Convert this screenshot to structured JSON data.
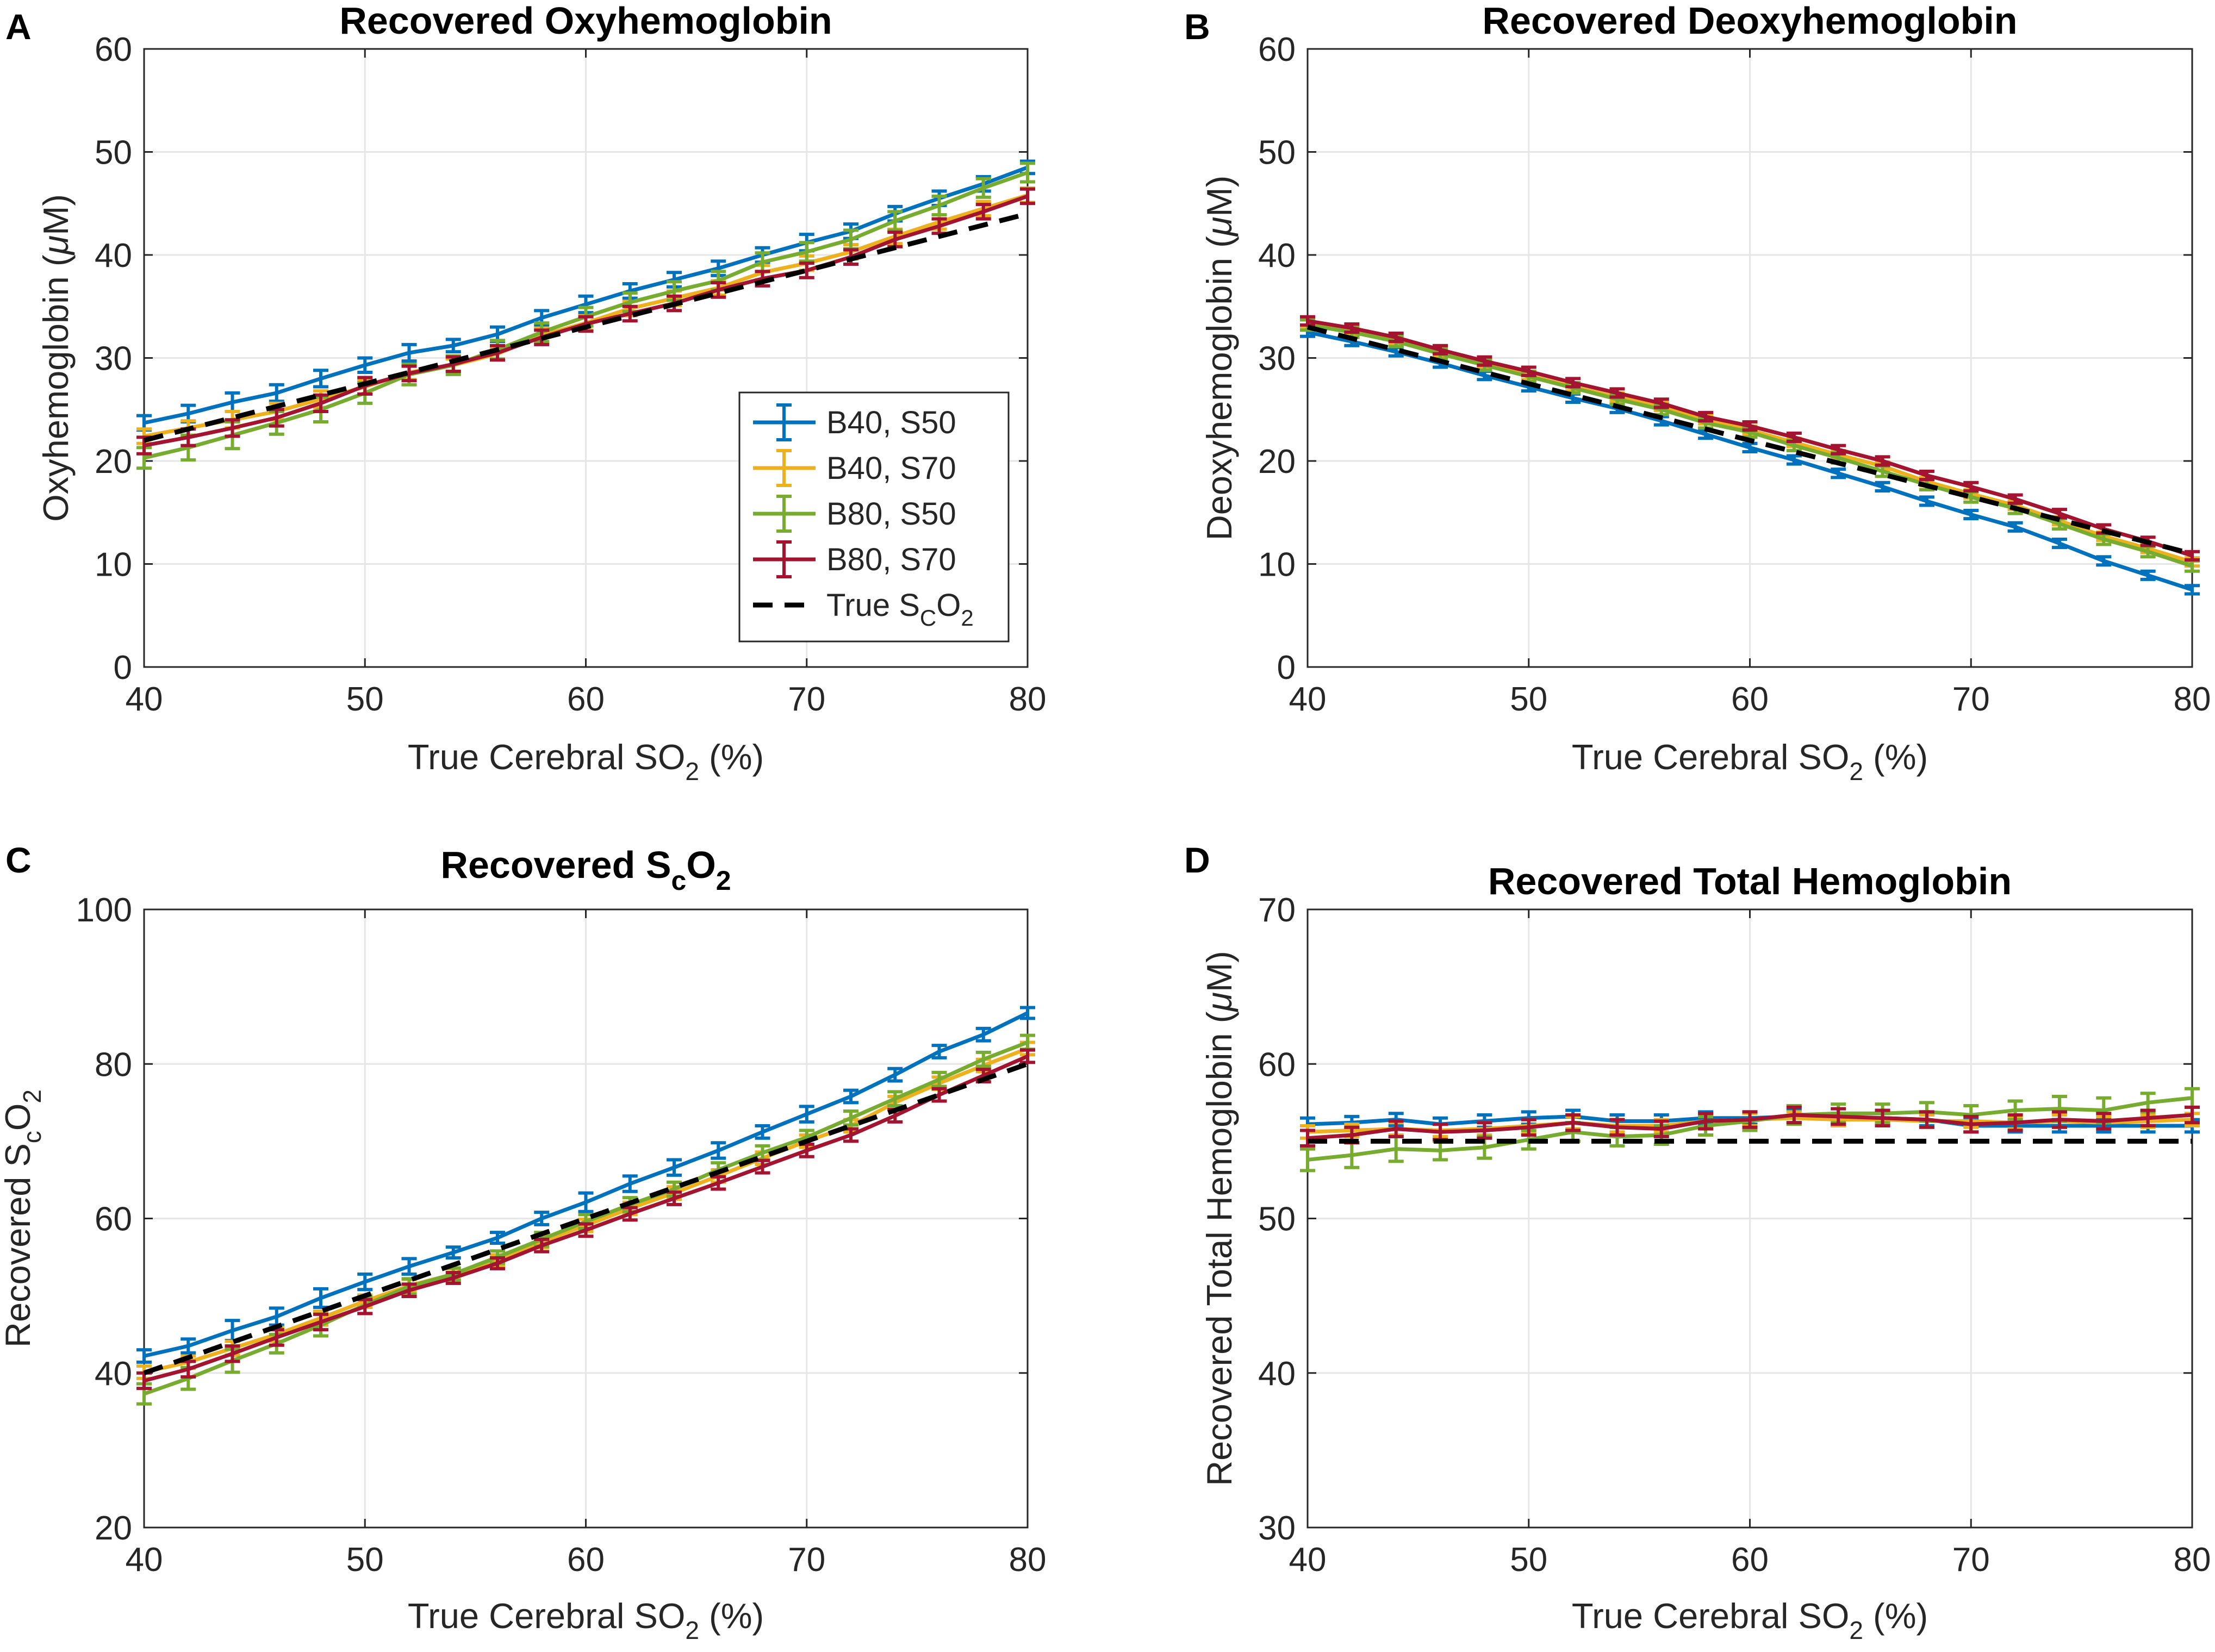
{
  "figure": {
    "colors": {
      "B40_S50": "#0072BD",
      "B40_S70": "#EDB120",
      "B80_S50": "#77AC30",
      "B80_S70": "#A2142F",
      "true": "#000000",
      "grid": "#e6e6e6",
      "axis": "#262626"
    },
    "legend": {
      "entries": [
        {
          "key": "B40_S50",
          "label": "B40, S50",
          "style": "errorbar"
        },
        {
          "key": "B40_S70",
          "label": "B40, S70",
          "style": "errorbar"
        },
        {
          "key": "B80_S50",
          "label": "B80, S50",
          "style": "errorbar"
        },
        {
          "key": "B80_S70",
          "label": "B80, S70",
          "style": "errorbar"
        },
        {
          "key": "true",
          "label": "True S",
          "sub1": "C",
          "mid": "O",
          "sub2": "2",
          "style": "dashed"
        }
      ]
    }
  },
  "chart_data": [
    {
      "panel": "A",
      "type": "line",
      "title": "Recovered Oxyhemoglobin",
      "xlabel": {
        "pre": "True Cerebral SO",
        "sub": "2",
        "post": " (%)"
      },
      "ylabel": {
        "pre": "Oxyhemoglobin (",
        "greek": "μ",
        "post": "M)"
      },
      "xlim": [
        40,
        80
      ],
      "ylim": [
        0,
        60
      ],
      "xticks": [
        40,
        50,
        60,
        70,
        80
      ],
      "yticks": [
        0,
        10,
        20,
        30,
        40,
        50,
        60
      ],
      "grid": true,
      "legend_location": "lower-right",
      "x": [
        40,
        42,
        44,
        46,
        48,
        50,
        52,
        54,
        56,
        58,
        60,
        62,
        64,
        66,
        68,
        70,
        72,
        74,
        76,
        78,
        80
      ],
      "series": [
        {
          "key": "B40_S50",
          "values": [
            23.7,
            24.6,
            25.7,
            26.6,
            28.0,
            29.3,
            30.5,
            31.2,
            32.3,
            33.9,
            35.2,
            36.5,
            37.6,
            38.7,
            40.0,
            41.2,
            42.3,
            44.0,
            45.5,
            46.9,
            48.5
          ],
          "err": [
            0.7,
            0.8,
            0.9,
            0.8,
            0.8,
            0.7,
            0.8,
            0.6,
            0.7,
            0.7,
            0.8,
            0.7,
            0.7,
            0.7,
            0.7,
            0.8,
            0.7,
            0.7,
            0.7,
            0.7,
            0.6
          ]
        },
        {
          "key": "B40_S70",
          "values": [
            22.4,
            23.2,
            24.0,
            24.8,
            26.0,
            27.2,
            28.6,
            29.3,
            30.4,
            32.2,
            33.4,
            34.8,
            35.8,
            36.8,
            38.3,
            39.2,
            40.3,
            41.8,
            43.2,
            44.5,
            45.8
          ],
          "err": [
            0.7,
            0.7,
            0.8,
            0.8,
            0.8,
            0.7,
            0.7,
            0.6,
            0.6,
            0.7,
            0.7,
            0.7,
            0.7,
            0.7,
            0.7,
            0.7,
            0.7,
            0.7,
            0.7,
            0.7,
            0.7
          ]
        },
        {
          "key": "B80_S50",
          "values": [
            20.3,
            21.3,
            22.5,
            23.7,
            25.0,
            26.6,
            28.4,
            29.3,
            30.8,
            32.5,
            34.0,
            35.4,
            36.5,
            37.5,
            39.3,
            40.3,
            41.5,
            43.3,
            44.8,
            46.5,
            48.0
          ],
          "err": [
            1.0,
            1.2,
            1.3,
            1.1,
            1.2,
            1.0,
            1.0,
            0.9,
            0.9,
            0.9,
            0.9,
            0.9,
            0.9,
            0.9,
            0.9,
            0.9,
            0.9,
            0.9,
            0.9,
            0.9,
            0.9
          ]
        },
        {
          "key": "B80_S70",
          "values": [
            21.5,
            22.3,
            23.2,
            24.2,
            25.6,
            27.3,
            28.5,
            29.4,
            30.5,
            32.0,
            33.3,
            34.3,
            35.3,
            36.6,
            37.7,
            38.5,
            39.8,
            41.5,
            42.8,
            44.2,
            45.7
          ],
          "err": [
            0.8,
            0.8,
            0.8,
            0.8,
            0.8,
            0.8,
            0.7,
            0.7,
            0.7,
            0.7,
            0.7,
            0.7,
            0.7,
            0.7,
            0.7,
            0.7,
            0.7,
            0.7,
            0.7,
            0.7,
            0.7
          ]
        },
        {
          "key": "true",
          "x": [
            40,
            80
          ],
          "values": [
            22.0,
            44.0
          ]
        }
      ]
    },
    {
      "panel": "B",
      "type": "line",
      "title": "Recovered Deoxyhemoglobin",
      "xlabel": {
        "pre": "True Cerebral SO",
        "sub": "2",
        "post": " (%)"
      },
      "ylabel": {
        "pre": "Deoxyhemoglobin (",
        "greek": "μ",
        "post": "M)"
      },
      "xlim": [
        40,
        80
      ],
      "ylim": [
        0,
        60
      ],
      "xticks": [
        40,
        50,
        60,
        70,
        80
      ],
      "yticks": [
        0,
        10,
        20,
        30,
        40,
        50,
        60
      ],
      "grid": true,
      "x": [
        40,
        42,
        44,
        46,
        48,
        50,
        52,
        54,
        56,
        58,
        60,
        62,
        64,
        66,
        68,
        70,
        72,
        74,
        76,
        78,
        80
      ],
      "series": [
        {
          "key": "B40_S50",
          "values": [
            32.5,
            31.6,
            30.6,
            29.5,
            28.3,
            27.2,
            26.1,
            25.1,
            23.9,
            22.6,
            21.3,
            20.1,
            18.8,
            17.5,
            16.1,
            14.8,
            13.6,
            12.0,
            10.3,
            8.9,
            7.5
          ],
          "err": [
            0.4,
            0.4,
            0.4,
            0.4,
            0.4,
            0.4,
            0.4,
            0.4,
            0.4,
            0.4,
            0.4,
            0.4,
            0.4,
            0.4,
            0.4,
            0.4,
            0.4,
            0.4,
            0.4,
            0.4,
            0.4
          ]
        },
        {
          "key": "B40_S70",
          "values": [
            33.3,
            32.6,
            31.7,
            30.5,
            29.4,
            28.3,
            27.2,
            26.2,
            25.3,
            24.0,
            23.0,
            21.8,
            20.6,
            19.5,
            18.0,
            16.8,
            15.7,
            14.2,
            12.7,
            11.5,
            10.2
          ],
          "err": [
            0.4,
            0.4,
            0.4,
            0.4,
            0.4,
            0.4,
            0.4,
            0.4,
            0.4,
            0.4,
            0.4,
            0.4,
            0.4,
            0.4,
            0.4,
            0.4,
            0.4,
            0.4,
            0.4,
            0.4,
            0.4
          ]
        },
        {
          "key": "B80_S50",
          "values": [
            33.2,
            32.5,
            31.6,
            30.4,
            29.3,
            28.2,
            27.1,
            26.0,
            25.0,
            23.7,
            22.8,
            21.5,
            20.3,
            19.0,
            17.7,
            16.5,
            15.4,
            13.9,
            12.4,
            11.2,
            9.8
          ],
          "err": [
            0.5,
            0.5,
            0.5,
            0.5,
            0.5,
            0.5,
            0.5,
            0.5,
            0.5,
            0.5,
            0.5,
            0.5,
            0.5,
            0.5,
            0.5,
            0.5,
            0.5,
            0.5,
            0.5,
            0.5,
            0.5
          ]
        },
        {
          "key": "B80_S70",
          "values": [
            33.6,
            32.9,
            32.0,
            30.8,
            29.7,
            28.7,
            27.6,
            26.6,
            25.6,
            24.3,
            23.4,
            22.3,
            21.1,
            20.0,
            18.6,
            17.5,
            16.3,
            14.9,
            13.4,
            12.2,
            10.8
          ],
          "err": [
            0.4,
            0.4,
            0.4,
            0.4,
            0.4,
            0.4,
            0.4,
            0.4,
            0.4,
            0.4,
            0.4,
            0.4,
            0.4,
            0.4,
            0.4,
            0.4,
            0.4,
            0.4,
            0.4,
            0.4,
            0.4
          ]
        },
        {
          "key": "true",
          "x": [
            40,
            80
          ],
          "values": [
            33.0,
            11.0
          ]
        }
      ]
    },
    {
      "panel": "C",
      "type": "line",
      "title": {
        "pre": "Recovered S",
        "sub": "c",
        "post": "O",
        "sub2": "2"
      },
      "xlabel": {
        "pre": "True Cerebral SO",
        "sub": "2",
        "post": " (%)"
      },
      "ylabel": {
        "pre": "Recovered S",
        "sub": "c",
        "post": "O",
        "sub2": "2"
      },
      "xlim": [
        40,
        80
      ],
      "ylim": [
        20,
        100
      ],
      "xticks": [
        40,
        50,
        60,
        70,
        80
      ],
      "yticks": [
        20,
        40,
        60,
        80,
        100
      ],
      "grid": true,
      "x": [
        40,
        42,
        44,
        46,
        48,
        50,
        52,
        54,
        56,
        58,
        60,
        62,
        64,
        66,
        68,
        70,
        72,
        74,
        76,
        78,
        80
      ],
      "series": [
        {
          "key": "B40_S50",
          "values": [
            42.2,
            43.5,
            45.5,
            47.3,
            49.7,
            51.8,
            53.8,
            55.6,
            57.5,
            60.0,
            62.1,
            64.5,
            66.6,
            68.8,
            71.2,
            73.5,
            75.8,
            78.6,
            81.6,
            83.8,
            86.6
          ],
          "err": [
            0.8,
            0.9,
            1.3,
            1.1,
            1.2,
            1.0,
            1.0,
            0.7,
            0.7,
            0.8,
            1.2,
            1.0,
            1.0,
            1.0,
            0.8,
            1.0,
            0.8,
            0.8,
            0.8,
            0.8,
            0.7
          ]
        },
        {
          "key": "B40_S70",
          "values": [
            40.1,
            41.4,
            43.2,
            45.0,
            47.1,
            49.3,
            51.3,
            52.8,
            54.6,
            57.0,
            59.1,
            61.3,
            63.3,
            65.5,
            67.8,
            70.0,
            72.0,
            75.0,
            77.5,
            79.8,
            82.0
          ],
          "err": [
            0.8,
            0.8,
            0.9,
            0.9,
            0.9,
            0.8,
            0.8,
            0.7,
            0.7,
            0.8,
            0.8,
            0.8,
            0.8,
            0.8,
            0.8,
            0.8,
            0.8,
            0.8,
            0.8,
            0.8,
            0.8
          ]
        },
        {
          "key": "B80_S50",
          "values": [
            37.3,
            39.3,
            41.6,
            43.8,
            46.2,
            48.8,
            51.2,
            52.8,
            55.0,
            57.3,
            59.6,
            61.8,
            63.8,
            66.3,
            68.5,
            70.5,
            73.0,
            75.5,
            78.0,
            80.6,
            82.8
          ],
          "err": [
            1.3,
            1.4,
            1.5,
            1.2,
            1.4,
            1.1,
            1.0,
            0.8,
            0.8,
            0.9,
            0.9,
            0.9,
            0.9,
            0.9,
            0.9,
            0.9,
            0.9,
            0.9,
            0.9,
            0.9,
            0.9
          ]
        },
        {
          "key": "B80_S70",
          "values": [
            39.0,
            40.5,
            42.5,
            44.6,
            46.6,
            48.6,
            50.7,
            52.3,
            54.2,
            56.5,
            58.5,
            60.6,
            62.6,
            64.6,
            66.7,
            68.8,
            70.8,
            73.3,
            76.0,
            78.5,
            81.0
          ],
          "err": [
            1.0,
            1.0,
            1.0,
            1.0,
            1.0,
            0.9,
            0.8,
            0.7,
            0.7,
            0.8,
            0.8,
            0.8,
            0.8,
            0.8,
            0.8,
            0.8,
            0.8,
            0.8,
            0.8,
            0.8,
            0.8
          ]
        },
        {
          "key": "true",
          "x": [
            40,
            80
          ],
          "values": [
            40.0,
            80.0
          ]
        }
      ]
    },
    {
      "panel": "D",
      "type": "line",
      "title": "Recovered Total Hemoglobin",
      "xlabel": {
        "pre": "True Cerebral SO",
        "sub": "2",
        "post": " (%)"
      },
      "ylabel": {
        "pre": "Recovered Total Hemoglobin (",
        "greek": "μ",
        "post": "M)"
      },
      "xlim": [
        40,
        80
      ],
      "ylim": [
        30,
        70
      ],
      "xticks": [
        40,
        50,
        60,
        70,
        80
      ],
      "yticks": [
        30,
        40,
        50,
        60,
        70
      ],
      "grid": true,
      "x": [
        40,
        42,
        44,
        46,
        48,
        50,
        52,
        54,
        56,
        58,
        60,
        62,
        64,
        66,
        68,
        70,
        72,
        74,
        76,
        78,
        80
      ],
      "series": [
        {
          "key": "B40_S50",
          "values": [
            56.1,
            56.2,
            56.4,
            56.1,
            56.3,
            56.5,
            56.6,
            56.3,
            56.3,
            56.5,
            56.5,
            56.6,
            56.4,
            56.5,
            56.4,
            56.0,
            56.0,
            56.0,
            56.0,
            56.0,
            56.0
          ],
          "err": [
            0.4,
            0.4,
            0.4,
            0.4,
            0.4,
            0.4,
            0.4,
            0.4,
            0.4,
            0.4,
            0.4,
            0.4,
            0.4,
            0.4,
            0.4,
            0.4,
            0.4,
            0.4,
            0.4,
            0.4,
            0.4
          ]
        },
        {
          "key": "B40_S70",
          "values": [
            55.6,
            55.7,
            55.8,
            55.7,
            55.8,
            56.0,
            56.2,
            56.0,
            56.0,
            56.3,
            56.4,
            56.5,
            56.4,
            56.4,
            56.3,
            56.3,
            56.2,
            56.3,
            56.2,
            56.3,
            56.4
          ],
          "err": [
            0.4,
            0.4,
            0.4,
            0.4,
            0.4,
            0.4,
            0.4,
            0.4,
            0.4,
            0.4,
            0.4,
            0.4,
            0.4,
            0.4,
            0.4,
            0.4,
            0.4,
            0.4,
            0.4,
            0.4,
            0.4
          ]
        },
        {
          "key": "B80_S50",
          "values": [
            53.8,
            54.1,
            54.5,
            54.4,
            54.6,
            55.1,
            55.6,
            55.3,
            55.4,
            56.0,
            56.3,
            56.7,
            56.8,
            56.8,
            56.9,
            56.7,
            57.0,
            57.1,
            57.0,
            57.5,
            57.8
          ],
          "err": [
            0.7,
            0.8,
            0.8,
            0.6,
            0.7,
            0.6,
            0.6,
            0.6,
            0.6,
            0.6,
            0.6,
            0.6,
            0.6,
            0.6,
            0.6,
            0.6,
            0.6,
            0.8,
            0.8,
            0.6,
            0.6
          ]
        },
        {
          "key": "B80_S70",
          "values": [
            55.2,
            55.4,
            55.8,
            55.6,
            55.7,
            55.9,
            56.2,
            55.9,
            55.8,
            56.3,
            56.4,
            56.7,
            56.6,
            56.5,
            56.4,
            56.1,
            56.2,
            56.4,
            56.3,
            56.5,
            56.7
          ],
          "err": [
            0.5,
            0.5,
            0.5,
            0.5,
            0.5,
            0.5,
            0.5,
            0.5,
            0.5,
            0.5,
            0.5,
            0.5,
            0.5,
            0.5,
            0.5,
            0.5,
            0.5,
            0.5,
            0.5,
            0.5,
            0.5
          ]
        },
        {
          "key": "true",
          "x": [
            40,
            80
          ],
          "values": [
            55.0,
            55.0
          ]
        }
      ]
    }
  ]
}
